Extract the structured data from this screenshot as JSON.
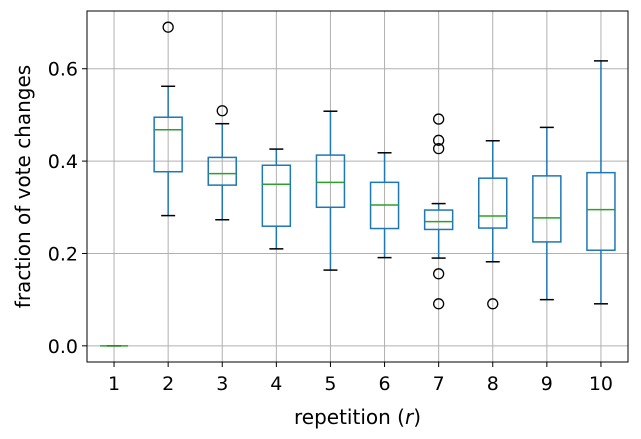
{
  "chart_data": {
    "type": "boxplot",
    "xlabel_prefix": "repetition (",
    "xlabel_var": "r",
    "xlabel_suffix": ")",
    "ylabel": "fraction of vote changes",
    "ylim": [
      -0.035,
      0.725
    ],
    "yticks": [
      0.0,
      0.2,
      0.4,
      0.6
    ],
    "ytick_labels": [
      "0.0",
      "0.2",
      "0.4",
      "0.6"
    ],
    "grid": true,
    "legend": "none",
    "categories": [
      "1",
      "2",
      "3",
      "4",
      "5",
      "6",
      "7",
      "8",
      "9",
      "10"
    ],
    "boxes": [
      {
        "min": 0.0,
        "q1": 0.0,
        "median": 0.0,
        "q3": 0.0,
        "max": 0.0,
        "outliers": []
      },
      {
        "min": 0.282,
        "q1": 0.377,
        "median": 0.468,
        "q3": 0.495,
        "max": 0.562,
        "outliers": [
          0.69
        ]
      },
      {
        "min": 0.273,
        "q1": 0.348,
        "median": 0.373,
        "q3": 0.408,
        "max": 0.481,
        "outliers": [
          0.509
        ]
      },
      {
        "min": 0.21,
        "q1": 0.259,
        "median": 0.35,
        "q3": 0.391,
        "max": 0.426,
        "outliers": []
      },
      {
        "min": 0.164,
        "q1": 0.3,
        "median": 0.354,
        "q3": 0.413,
        "max": 0.508,
        "outliers": []
      },
      {
        "min": 0.191,
        "q1": 0.254,
        "median": 0.305,
        "q3": 0.354,
        "max": 0.418,
        "outliers": []
      },
      {
        "min": 0.19,
        "q1": 0.252,
        "median": 0.269,
        "q3": 0.294,
        "max": 0.308,
        "outliers": [
          0.091,
          0.156,
          0.427,
          0.445,
          0.491
        ]
      },
      {
        "min": 0.182,
        "q1": 0.255,
        "median": 0.281,
        "q3": 0.363,
        "max": 0.444,
        "outliers": [
          0.091
        ]
      },
      {
        "min": 0.1,
        "q1": 0.225,
        "median": 0.277,
        "q3": 0.368,
        "max": 0.473,
        "outliers": []
      },
      {
        "min": 0.091,
        "q1": 0.207,
        "median": 0.295,
        "q3": 0.375,
        "max": 0.617,
        "outliers": []
      }
    ],
    "colors": {
      "box": "#1f77b4",
      "median": "#2ca02c",
      "grid": "#b0b0b0",
      "axes": "#000000",
      "outlier": "#000000"
    }
  }
}
